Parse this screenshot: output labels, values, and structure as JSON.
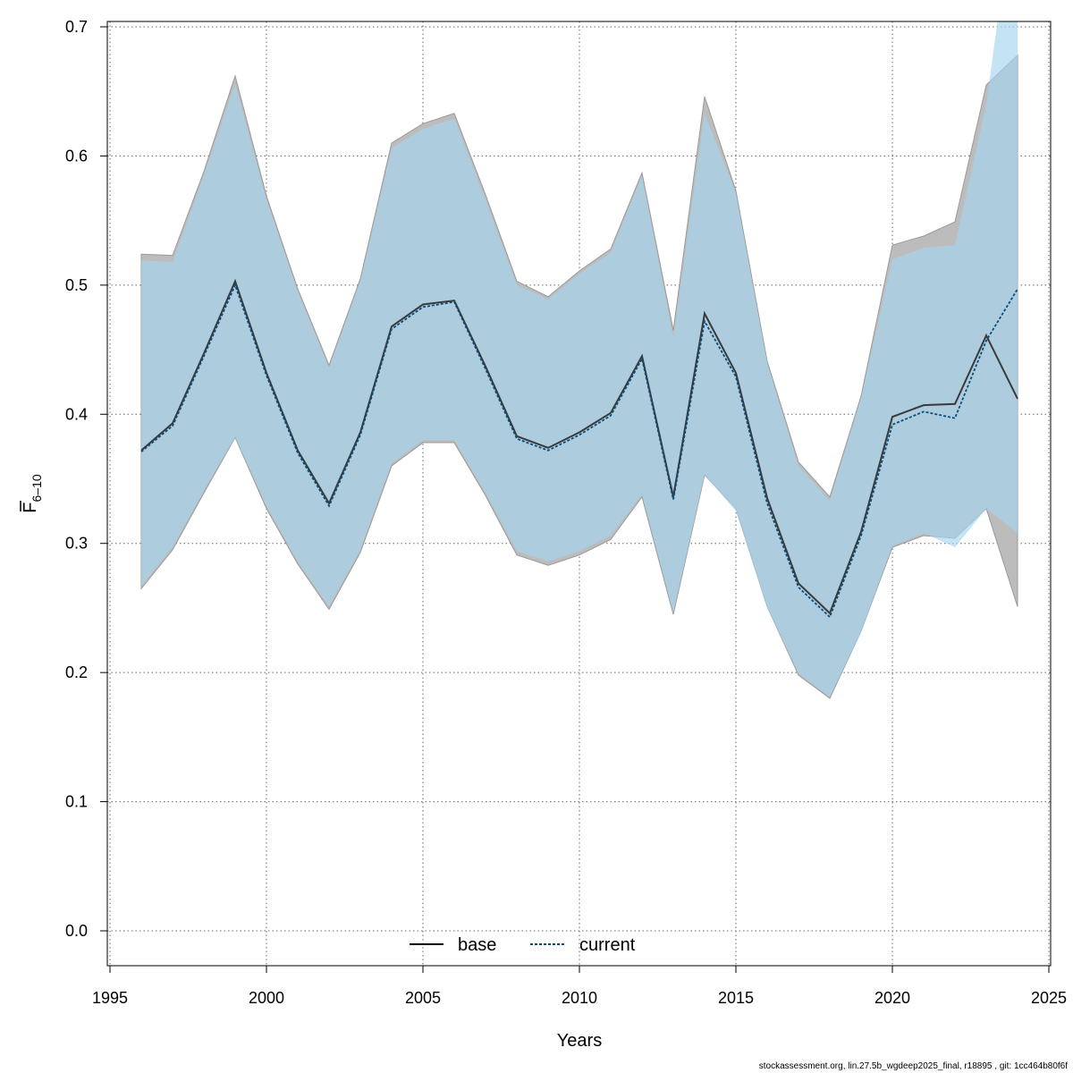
{
  "chart_data": {
    "type": "line",
    "xlabel": "Years",
    "ylabel_main": "F",
    "ylabel_sub": "6–10",
    "xlim": [
      1995,
      2025
    ],
    "ylim": [
      0.0,
      0.7
    ],
    "x_ticks": [
      1995,
      2000,
      2005,
      2010,
      2015,
      2020,
      2025
    ],
    "y_ticks": [
      0.0,
      0.1,
      0.2,
      0.3,
      0.4,
      0.5,
      0.6,
      0.7
    ],
    "grid": true,
    "legend_position": "bottom-center",
    "x": [
      1996,
      1997,
      1998,
      1999,
      2000,
      2001,
      2002,
      2003,
      2004,
      2005,
      2006,
      2007,
      2008,
      2009,
      2010,
      2011,
      2012,
      2013,
      2014,
      2015,
      2016,
      2017,
      2018,
      2019,
      2020,
      2021,
      2022,
      2023,
      2024
    ],
    "series": [
      {
        "name": "base",
        "line_style": "solid",
        "color": "#000000",
        "band_color": "#bcbcbc",
        "values": [
          0.372,
          0.393,
          0.447,
          0.503,
          0.432,
          0.372,
          0.331,
          0.386,
          0.468,
          0.485,
          0.488,
          0.437,
          0.383,
          0.374,
          0.386,
          0.401,
          0.445,
          0.336,
          0.478,
          0.432,
          0.335,
          0.269,
          0.246,
          0.309,
          0.398,
          0.407,
          0.408,
          0.461,
          0.412
        ],
        "lower": [
          0.265,
          0.295,
          0.339,
          0.382,
          0.327,
          0.284,
          0.249,
          0.293,
          0.36,
          0.378,
          0.378,
          0.337,
          0.291,
          0.283,
          0.291,
          0.303,
          0.336,
          0.245,
          0.353,
          0.327,
          0.251,
          0.198,
          0.18,
          0.232,
          0.297,
          0.306,
          0.304,
          0.327,
          0.251
        ],
        "upper": [
          0.524,
          0.523,
          0.588,
          0.662,
          0.569,
          0.497,
          0.438,
          0.505,
          0.61,
          0.625,
          0.633,
          0.57,
          0.503,
          0.491,
          0.511,
          0.528,
          0.587,
          0.465,
          0.646,
          0.573,
          0.441,
          0.363,
          0.336,
          0.414,
          0.531,
          0.538,
          0.549,
          0.655,
          0.678
        ]
      },
      {
        "name": "current",
        "line_style": "dotted",
        "color": "#0b4d7a",
        "band_color": "#a4d4f0",
        "values": [
          0.371,
          0.391,
          0.445,
          0.5,
          0.43,
          0.37,
          0.329,
          0.384,
          0.466,
          0.483,
          0.487,
          0.435,
          0.381,
          0.372,
          0.384,
          0.399,
          0.443,
          0.334,
          0.472,
          0.429,
          0.331,
          0.266,
          0.243,
          0.306,
          0.392,
          0.402,
          0.397,
          0.457,
          0.497
        ],
        "lower": [
          0.267,
          0.297,
          0.341,
          0.382,
          0.329,
          0.286,
          0.251,
          0.295,
          0.362,
          0.38,
          0.38,
          0.339,
          0.294,
          0.286,
          0.294,
          0.306,
          0.338,
          0.246,
          0.353,
          0.325,
          0.25,
          0.199,
          0.181,
          0.231,
          0.298,
          0.308,
          0.297,
          0.327,
          0.308
        ],
        "upper": [
          0.519,
          0.518,
          0.585,
          0.656,
          0.566,
          0.495,
          0.436,
          0.503,
          0.606,
          0.621,
          0.629,
          0.566,
          0.5,
          0.489,
          0.509,
          0.525,
          0.585,
          0.459,
          0.633,
          0.571,
          0.44,
          0.36,
          0.333,
          0.413,
          0.52,
          0.529,
          0.531,
          0.64,
          0.82
        ]
      }
    ],
    "footer": "stockassessment.org, lin.27.5b_wgdeep2025_final, r18895 , git: 1cc464b80f6f"
  }
}
